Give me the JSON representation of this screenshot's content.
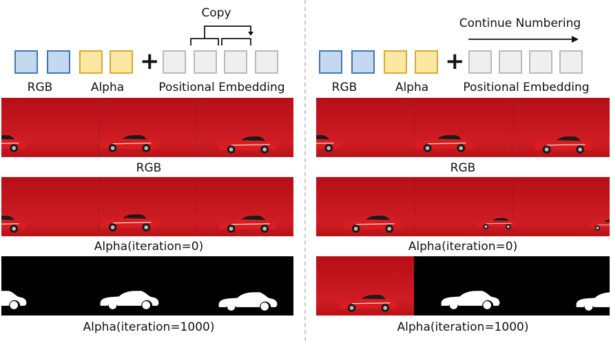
{
  "left_panel": {
    "copy_label": "Copy",
    "token_labels": {
      "rgb": "RGB",
      "alpha": "Alpha",
      "pos": "Positional Embedding"
    },
    "plus": "+",
    "captions": {
      "rgb": "RGB",
      "alpha0": "Alpha(iteration=0)",
      "alpha1000": "Alpha(iteration=1000)"
    }
  },
  "right_panel": {
    "continue_label": "Continue Numbering",
    "token_labels": {
      "rgb": "RGB",
      "alpha": "Alpha",
      "pos": "Positional Embedding"
    },
    "plus": "+",
    "captions": {
      "rgb": "RGB",
      "alpha0": "Alpha(iteration=0)",
      "alpha1000": "Alpha(iteration=1000)"
    }
  },
  "colors": {
    "rgb_fill": "#c5d8ee",
    "rgb_border": "#3b78b8",
    "alpha_fill": "#fde7a4",
    "alpha_border": "#d8a92b",
    "pos_fill": "#efefef",
    "pos_border": "#b9b9b9",
    "background_red": "#c4161f",
    "car_red": "#d81c1f"
  }
}
